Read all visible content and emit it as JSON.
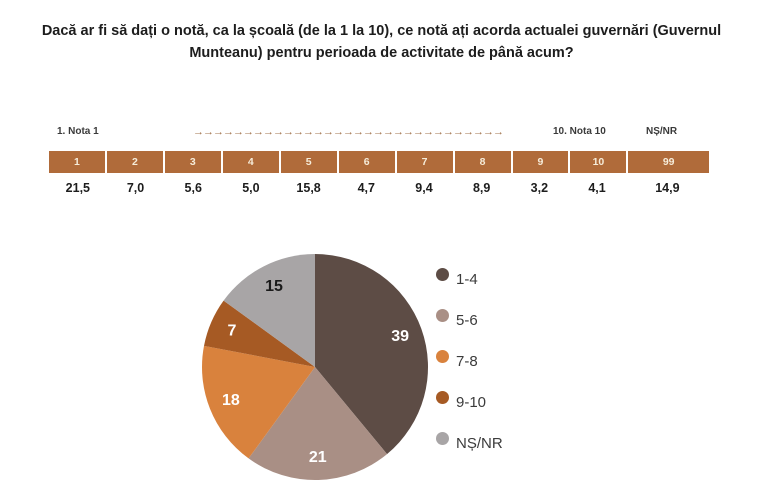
{
  "title": {
    "text": "Dacă ar fi să dați o notă, ca la școală (de la 1 la 10), ce notă ați acorda actualei guvernări (Guvernul Munteanu) pentru perioada de activitate de până acum?"
  },
  "scale_row": {
    "left_label": "1. Nota 1",
    "arrows": "→→→→→→→→→→→→→→→→→→→→→→→→→→→→→→→",
    "right_label": "10. Nota 10",
    "nsnr_label": "NȘ/NR",
    "arrow_color": "#a0714a"
  },
  "score_table": {
    "header_bg": "#b06b3a",
    "header_text_color": "#f6ecd9",
    "columns": [
      {
        "header": "1",
        "value": "21,5"
      },
      {
        "header": "2",
        "value": "7,0"
      },
      {
        "header": "3",
        "value": "5,6"
      },
      {
        "header": "4",
        "value": "5,0"
      },
      {
        "header": "5",
        "value": "15,8"
      },
      {
        "header": "6",
        "value": "4,7"
      },
      {
        "header": "7",
        "value": "9,4"
      },
      {
        "header": "8",
        "value": "8,9"
      },
      {
        "header": "9",
        "value": "3,2"
      },
      {
        "header": "10",
        "value": "4,1"
      },
      {
        "header": "99",
        "value": "14,9"
      }
    ]
  },
  "chart_data": {
    "type": "pie",
    "title": "",
    "categories": [
      "1-4",
      "5-6",
      "7-8",
      "9-10",
      "NȘ/NR"
    ],
    "values": [
      39,
      21,
      18,
      7,
      15
    ],
    "colors": [
      "#5d4c45",
      "#a98f85",
      "#d9823d",
      "#a65a24",
      "#a8a5a6"
    ],
    "value_label_colors": [
      "#ffffff",
      "#ffffff",
      "#ffffff",
      "#ffffff",
      "#1a1a1a"
    ],
    "start_angle_deg": 0,
    "direction": "clockwise",
    "legend_position": "right"
  }
}
